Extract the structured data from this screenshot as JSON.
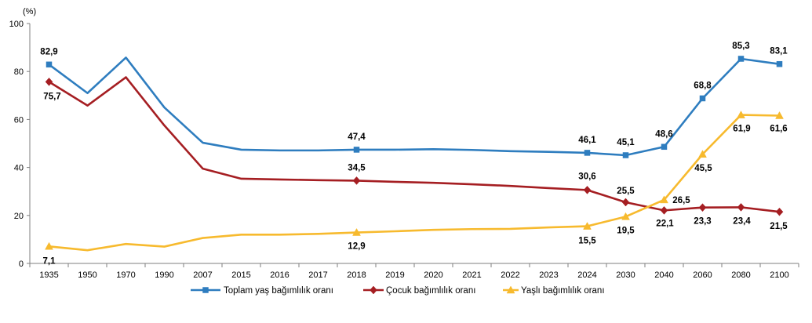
{
  "chart_data": {
    "type": "line",
    "unit_label": "(%)",
    "title": "",
    "xlabel": "",
    "ylabel": "",
    "ylim": [
      0,
      100
    ],
    "yticks": [
      "0",
      "20",
      "40",
      "60",
      "80",
      "100"
    ],
    "categories": [
      "1935",
      "1950",
      "1970",
      "1990",
      "2007",
      "2015",
      "2016",
      "2017",
      "2018",
      "2019",
      "2020",
      "2021",
      "2022",
      "2023",
      "2024",
      "2030",
      "2040",
      "2060",
      "2080",
      "2100"
    ],
    "series": [
      {
        "name": "Toplam yaş bağımlılık oranı",
        "color": "#2E7DBF",
        "marker": "square",
        "values": [
          82.9,
          71.0,
          85.8,
          65.0,
          50.3,
          47.4,
          47.1,
          47.1,
          47.4,
          47.4,
          47.6,
          47.3,
          46.8,
          46.5,
          46.1,
          45.1,
          48.6,
          68.8,
          85.3,
          83.1
        ],
        "marker_indices": [
          0,
          8,
          14,
          15,
          16,
          17,
          18,
          19
        ],
        "labels": [
          {
            "index": 0,
            "text": "82,9"
          },
          {
            "index": 8,
            "text": "47,4"
          },
          {
            "index": 14,
            "text": "46,1"
          },
          {
            "index": 15,
            "text": "45,1"
          },
          {
            "index": 16,
            "text": "48,6"
          },
          {
            "index": 17,
            "text": "68,8"
          },
          {
            "index": 18,
            "text": "85,3"
          },
          {
            "index": 19,
            "text": "83,1"
          }
        ]
      },
      {
        "name": "Çocuk bağımlılık oranı",
        "color": "#A51E22",
        "marker": "diamond",
        "values": [
          75.7,
          65.8,
          77.6,
          57.5,
          39.5,
          35.3,
          35.0,
          34.7,
          34.5,
          34.0,
          33.6,
          33.0,
          32.3,
          31.4,
          30.6,
          25.5,
          22.1,
          23.3,
          23.4,
          21.5
        ],
        "marker_indices": [
          0,
          8,
          14,
          15,
          16,
          17,
          18,
          19
        ],
        "labels": [
          {
            "index": 0,
            "text": "75,7"
          },
          {
            "index": 8,
            "text": "34,5"
          },
          {
            "index": 14,
            "text": "30,6"
          },
          {
            "index": 15,
            "text": "25,5"
          },
          {
            "index": 16,
            "text": "22,1"
          },
          {
            "index": 17,
            "text": "23,3"
          },
          {
            "index": 18,
            "text": "23,4"
          },
          {
            "index": 19,
            "text": "21,5"
          }
        ]
      },
      {
        "name": "Yaşlı bağımlılık oranı",
        "color": "#F7BA2E",
        "marker": "triangle",
        "values": [
          7.1,
          5.5,
          8.1,
          7.0,
          10.6,
          12.0,
          12.0,
          12.3,
          12.9,
          13.4,
          14.0,
          14.3,
          14.4,
          15.0,
          15.5,
          19.5,
          26.5,
          45.5,
          61.9,
          61.6
        ],
        "marker_indices": [
          0,
          8,
          14,
          15,
          16,
          17,
          18,
          19
        ],
        "labels": [
          {
            "index": 0,
            "text": "7,1"
          },
          {
            "index": 8,
            "text": "12,9"
          },
          {
            "index": 14,
            "text": "15,5"
          },
          {
            "index": 15,
            "text": "19,5"
          },
          {
            "index": 16,
            "text": "26,5"
          },
          {
            "index": 17,
            "text": "45,5"
          },
          {
            "index": 18,
            "text": "61,9"
          },
          {
            "index": 19,
            "text": "61,6"
          }
        ]
      }
    ],
    "grid": false,
    "legend_position": "bottom-center"
  }
}
